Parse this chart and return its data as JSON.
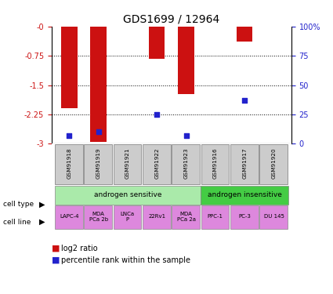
{
  "title": "GDS1699 / 12964",
  "samples": [
    "GSM91918",
    "GSM91919",
    "GSM91921",
    "GSM91922",
    "GSM91923",
    "GSM91916",
    "GSM91917",
    "GSM91920"
  ],
  "log2_ratio": [
    -2.1,
    -2.95,
    0.0,
    -0.82,
    -1.72,
    0.0,
    -0.38,
    0.0
  ],
  "pct_rank": [
    7,
    10,
    0,
    25,
    7,
    0,
    37,
    0
  ],
  "ylim_left": [
    -3,
    0
  ],
  "ylim_right": [
    0,
    100
  ],
  "yticks_left": [
    0,
    -0.75,
    -1.5,
    -2.25,
    -3
  ],
  "yticks_right": [
    0,
    25,
    50,
    75,
    100
  ],
  "bar_color": "#cc1111",
  "dot_color": "#2222cc",
  "cell_type_groups": [
    {
      "label": "androgen sensitive",
      "start": 0,
      "end": 5,
      "color": "#aaeaaa"
    },
    {
      "label": "androgen insensitive",
      "start": 5,
      "end": 8,
      "color": "#44cc44"
    }
  ],
  "cell_lines": [
    "LAPC-4",
    "MDA\nPCa 2b",
    "LNCa\nP",
    "22Rv1",
    "MDA\nPCa 2a",
    "PPC-1",
    "PC-3",
    "DU 145"
  ],
  "cell_line_color": "#dd88dd",
  "gsm_box_color": "#cccccc",
  "legend_red_label": "log2 ratio",
  "legend_blue_label": "percentile rank within the sample",
  "left_axis_color": "#cc1111",
  "right_axis_color": "#2222cc",
  "bar_width": 0.55,
  "dot_size": 25
}
